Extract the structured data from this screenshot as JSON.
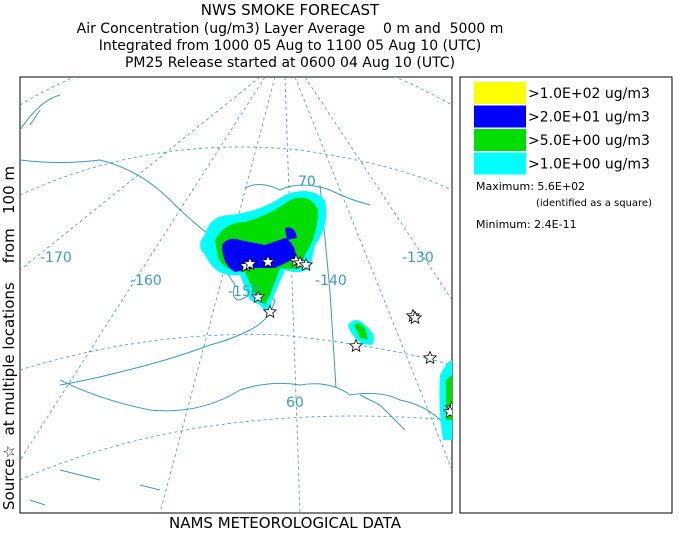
{
  "header": {
    "title": "NWS SMOKE FORECAST",
    "lines": [
      "Air Concentration (ug/m3) Layer Average    0 m and  5000 m",
      "Integrated from 1000 05 Aug to 1100 05 Aug 10 (UTC)",
      "PM25 Release started at 0600 04 Aug 10 (UTC)"
    ]
  },
  "side_label": "Source☆  at multiple locations    from   100 m",
  "footer": "NAMS METEOROLOGICAL DATA",
  "map": {
    "graticule_labels": [
      "70",
      "-170",
      "-160",
      "-150",
      "-140",
      "-130",
      "60"
    ]
  },
  "legend": {
    "items": [
      {
        "label": ">1.0E+02 ug/m3",
        "color": "#ffff00"
      },
      {
        "label": ">2.0E+01 ug/m3",
        "color": "#0000ff"
      },
      {
        "label": ">5.0E+00 ug/m3",
        "color": "#00dd00"
      },
      {
        "label": ">1.0E+00 ug/m3",
        "color": "#00ffff"
      }
    ],
    "maximum": "Maximum: 5.6E+02",
    "max_note": "(identified as a square)",
    "minimum": "Minimum: 2.4E-11"
  }
}
